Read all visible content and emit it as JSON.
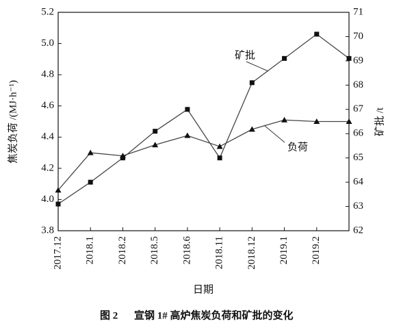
{
  "chart_data": {
    "type": "line",
    "caption_number": "图 2",
    "caption": "宣钢 1# 高炉焦炭负荷和矿批的变化",
    "xlabel": "日期",
    "ylabel": "焦炭负荷 /(MJ·h⁻¹)",
    "y2label": "矿批 /t",
    "categories": [
      "2017.12",
      "2018.1",
      "2018.2",
      "2018.5",
      "2018.6",
      "2018.11",
      "2018.12",
      "2019.1",
      "2019.2",
      null
    ],
    "ylim": [
      3.8,
      5.2
    ],
    "yticks": [
      3.8,
      {
        "value": 4,
        "label": "4.0"
      },
      4.2,
      4.4,
      4.6,
      4.8,
      {
        "value": 5,
        "label": "5.0"
      },
      5.2
    ],
    "y2lim": [
      62,
      71
    ],
    "y2ticks": [
      62,
      63,
      64,
      65,
      66,
      67,
      68,
      69,
      70,
      71
    ],
    "series": [
      {
        "name": "矿批",
        "color": "#444444",
        "marker": "square",
        "axis": "y2",
        "values": [
          63.1,
          64.0,
          65.0,
          66.1,
          67.0,
          65.0,
          68.1,
          69.1,
          70.1,
          69.1
        ]
      },
      {
        "name": "负荷",
        "color": "#444444",
        "marker": "triangle",
        "values": [
          4.06,
          4.3,
          4.28,
          4.35,
          4.41,
          4.34,
          4.45,
          4.51,
          4.5,
          4.5
        ]
      }
    ]
  }
}
